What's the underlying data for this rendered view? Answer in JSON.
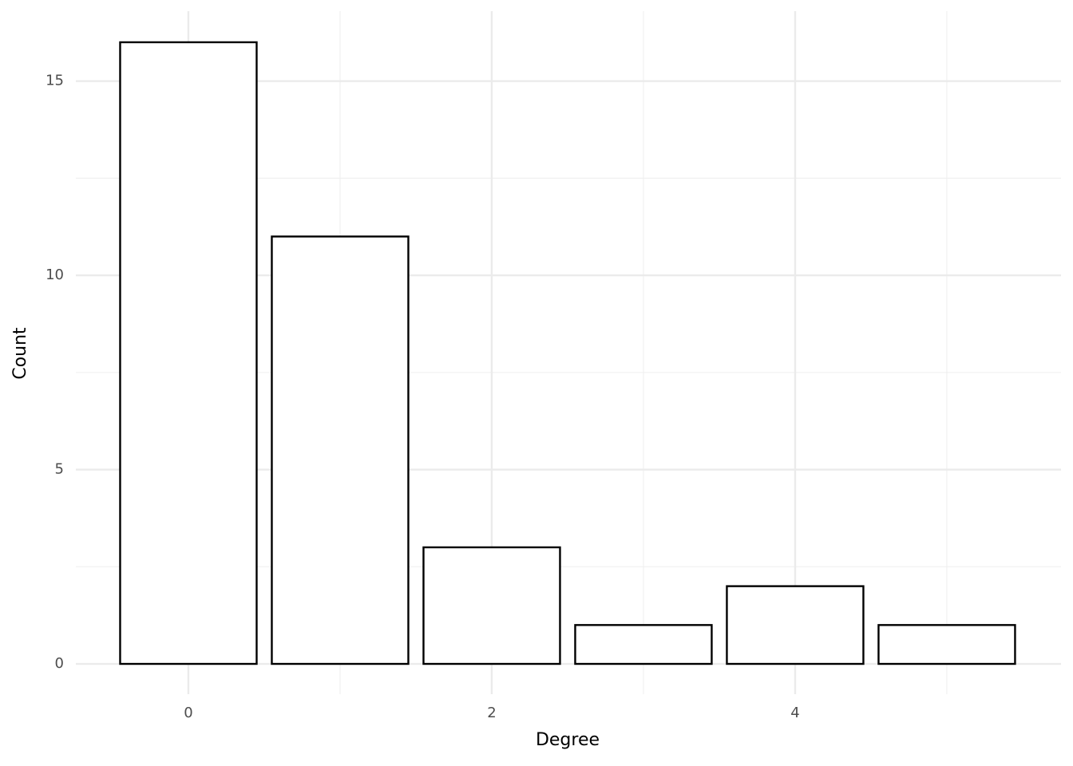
{
  "chart_data": {
    "type": "bar",
    "x": [
      0,
      1,
      2,
      3,
      4,
      5
    ],
    "values": [
      16,
      11,
      3,
      1,
      2,
      1
    ],
    "x_label": "Degree",
    "y_label": "Count",
    "xlim": [
      -0.742,
      5.753
    ],
    "ylim": [
      -0.78,
      16.8
    ],
    "xticks": [
      0,
      2,
      4
    ],
    "yticks": [
      0,
      5,
      10,
      15
    ],
    "xminor_ticks": [
      1,
      3,
      5
    ],
    "yminor_ticks": [
      2.5,
      7.5,
      12.5
    ],
    "grid": true,
    "color": "#ffffff",
    "edge_color": "#000000"
  }
}
